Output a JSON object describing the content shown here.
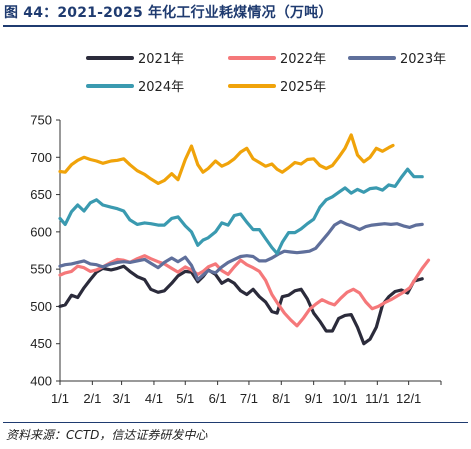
{
  "header": {
    "title": "图 44：2021-2025 年化工行业耗煤情况（万吨）"
  },
  "footer": {
    "source": "资料来源：CCTD，信达证券研发中心"
  },
  "chart_data": {
    "type": "line",
    "title": "",
    "xlabel": "",
    "ylabel": "",
    "ylim": [
      400,
      750
    ],
    "yticks": [
      400,
      450,
      500,
      550,
      600,
      650,
      700,
      750
    ],
    "xtick_labels": [
      "1/1",
      "2/1",
      "3/1",
      "4/1",
      "5/1",
      "6/1",
      "7/1",
      "8/1",
      "9/1",
      "10/1",
      "11/1",
      "12/1"
    ],
    "xtick_days": [
      1,
      32,
      60,
      91,
      121,
      152,
      182,
      213,
      244,
      274,
      305,
      335
    ],
    "xlim": [
      1,
      366
    ],
    "grid": false,
    "legend": "top",
    "series": [
      {
        "name": "2021年",
        "color": "#2b2b3b",
        "points": [
          [
            1,
            500
          ],
          [
            6,
            502
          ],
          [
            12,
            515
          ],
          [
            18,
            512
          ],
          [
            24,
            525
          ],
          [
            30,
            536
          ],
          [
            36,
            546
          ],
          [
            42,
            551
          ],
          [
            50,
            549
          ],
          [
            56,
            551
          ],
          [
            62,
            554
          ],
          [
            68,
            547
          ],
          [
            75,
            540
          ],
          [
            82,
            536
          ],
          [
            88,
            523
          ],
          [
            95,
            519
          ],
          [
            101,
            521
          ],
          [
            108,
            531
          ],
          [
            114,
            541
          ],
          [
            121,
            547
          ],
          [
            127,
            546
          ],
          [
            133,
            533
          ],
          [
            138,
            540
          ],
          [
            143,
            549
          ],
          [
            150,
            543
          ],
          [
            156,
            531
          ],
          [
            162,
            536
          ],
          [
            168,
            531
          ],
          [
            174,
            521
          ],
          [
            180,
            516
          ],
          [
            186,
            523
          ],
          [
            192,
            513
          ],
          [
            198,
            506
          ],
          [
            204,
            493
          ],
          [
            209,
            491
          ],
          [
            214,
            513
          ],
          [
            220,
            515
          ],
          [
            226,
            521
          ],
          [
            232,
            523
          ],
          [
            238,
            510
          ],
          [
            244,
            491
          ],
          [
            250,
            480
          ],
          [
            256,
            467
          ],
          [
            262,
            467
          ],
          [
            268,
            484
          ],
          [
            274,
            488
          ],
          [
            280,
            489
          ],
          [
            286,
            472
          ],
          [
            292,
            450
          ],
          [
            298,
            456
          ],
          [
            304,
            472
          ],
          [
            310,
            502
          ],
          [
            316,
            513
          ],
          [
            322,
            520
          ],
          [
            328,
            522
          ],
          [
            334,
            518
          ],
          [
            340,
            534
          ],
          [
            348,
            537
          ]
        ]
      },
      {
        "name": "2022年",
        "color": "#f5787a",
        "points": [
          [
            1,
            542
          ],
          [
            6,
            545
          ],
          [
            12,
            547
          ],
          [
            18,
            554
          ],
          [
            24,
            552
          ],
          [
            30,
            547
          ],
          [
            36,
            549
          ],
          [
            42,
            553
          ],
          [
            50,
            559
          ],
          [
            56,
            563
          ],
          [
            62,
            562
          ],
          [
            68,
            559
          ],
          [
            75,
            564
          ],
          [
            82,
            568
          ],
          [
            88,
            564
          ],
          [
            95,
            560
          ],
          [
            101,
            557
          ],
          [
            108,
            551
          ],
          [
            114,
            546
          ],
          [
            121,
            553
          ],
          [
            127,
            549
          ],
          [
            133,
            543
          ],
          [
            138,
            547
          ],
          [
            143,
            553
          ],
          [
            150,
            557
          ],
          [
            156,
            548
          ],
          [
            162,
            543
          ],
          [
            168,
            553
          ],
          [
            174,
            562
          ],
          [
            180,
            556
          ],
          [
            186,
            552
          ],
          [
            192,
            547
          ],
          [
            198,
            535
          ],
          [
            204,
            516
          ],
          [
            210,
            503
          ],
          [
            216,
            491
          ],
          [
            222,
            482
          ],
          [
            228,
            474
          ],
          [
            234,
            484
          ],
          [
            240,
            496
          ],
          [
            246,
            503
          ],
          [
            252,
            509
          ],
          [
            258,
            505
          ],
          [
            264,
            502
          ],
          [
            270,
            511
          ],
          [
            276,
            519
          ],
          [
            282,
            523
          ],
          [
            288,
            518
          ],
          [
            294,
            506
          ],
          [
            300,
            497
          ],
          [
            306,
            500
          ],
          [
            312,
            505
          ],
          [
            318,
            509
          ],
          [
            324,
            514
          ],
          [
            330,
            519
          ],
          [
            336,
            525
          ],
          [
            342,
            538
          ],
          [
            348,
            551
          ],
          [
            354,
            562
          ]
        ]
      },
      {
        "name": "2023年",
        "color": "#5f6f9b",
        "points": [
          [
            1,
            554
          ],
          [
            6,
            556
          ],
          [
            12,
            557
          ],
          [
            18,
            559
          ],
          [
            24,
            561
          ],
          [
            30,
            557
          ],
          [
            36,
            556
          ],
          [
            42,
            553
          ],
          [
            50,
            557
          ],
          [
            56,
            559
          ],
          [
            62,
            560
          ],
          [
            68,
            559
          ],
          [
            75,
            561
          ],
          [
            82,
            563
          ],
          [
            88,
            558
          ],
          [
            95,
            552
          ],
          [
            101,
            559
          ],
          [
            108,
            565
          ],
          [
            114,
            560
          ],
          [
            121,
            566
          ],
          [
            127,
            555
          ],
          [
            133,
            536
          ],
          [
            138,
            542
          ],
          [
            143,
            548
          ],
          [
            150,
            545
          ],
          [
            156,
            553
          ],
          [
            162,
            559
          ],
          [
            168,
            563
          ],
          [
            174,
            567
          ],
          [
            180,
            568
          ],
          [
            186,
            567
          ],
          [
            192,
            561
          ],
          [
            198,
            561
          ],
          [
            204,
            565
          ],
          [
            210,
            570
          ],
          [
            216,
            574
          ],
          [
            222,
            573
          ],
          [
            228,
            572
          ],
          [
            234,
            573
          ],
          [
            240,
            574
          ],
          [
            246,
            578
          ],
          [
            252,
            588
          ],
          [
            258,
            598
          ],
          [
            264,
            609
          ],
          [
            270,
            614
          ],
          [
            276,
            610
          ],
          [
            282,
            607
          ],
          [
            288,
            603
          ],
          [
            294,
            607
          ],
          [
            300,
            609
          ],
          [
            306,
            610
          ],
          [
            312,
            611
          ],
          [
            318,
            610
          ],
          [
            324,
            611
          ],
          [
            330,
            608
          ],
          [
            336,
            606
          ],
          [
            342,
            609
          ],
          [
            348,
            610
          ]
        ]
      },
      {
        "name": "2024年",
        "color": "#3a9ab0",
        "points": [
          [
            1,
            618
          ],
          [
            6,
            610
          ],
          [
            12,
            627
          ],
          [
            18,
            636
          ],
          [
            24,
            628
          ],
          [
            30,
            639
          ],
          [
            36,
            643
          ],
          [
            42,
            636
          ],
          [
            50,
            633
          ],
          [
            56,
            631
          ],
          [
            62,
            628
          ],
          [
            68,
            616
          ],
          [
            75,
            610
          ],
          [
            82,
            612
          ],
          [
            88,
            611
          ],
          [
            95,
            609
          ],
          [
            101,
            609
          ],
          [
            108,
            618
          ],
          [
            114,
            620
          ],
          [
            121,
            608
          ],
          [
            127,
            600
          ],
          [
            133,
            582
          ],
          [
            138,
            589
          ],
          [
            143,
            592
          ],
          [
            150,
            600
          ],
          [
            156,
            612
          ],
          [
            162,
            609
          ],
          [
            168,
            622
          ],
          [
            174,
            624
          ],
          [
            180,
            613
          ],
          [
            186,
            603
          ],
          [
            192,
            603
          ],
          [
            198,
            591
          ],
          [
            204,
            579
          ],
          [
            209,
            571
          ],
          [
            214,
            586
          ],
          [
            220,
            599
          ],
          [
            226,
            599
          ],
          [
            232,
            604
          ],
          [
            238,
            611
          ],
          [
            244,
            617
          ],
          [
            250,
            633
          ],
          [
            256,
            643
          ],
          [
            262,
            647
          ],
          [
            268,
            653
          ],
          [
            274,
            659
          ],
          [
            280,
            652
          ],
          [
            286,
            657
          ],
          [
            292,
            653
          ],
          [
            298,
            658
          ],
          [
            304,
            659
          ],
          [
            310,
            656
          ],
          [
            316,
            663
          ],
          [
            322,
            661
          ],
          [
            328,
            673
          ],
          [
            334,
            684
          ],
          [
            340,
            674
          ],
          [
            348,
            674
          ]
        ]
      },
      {
        "name": "2025年",
        "color": "#f0a30a",
        "points": [
          [
            1,
            681
          ],
          [
            6,
            680
          ],
          [
            12,
            690
          ],
          [
            18,
            696
          ],
          [
            24,
            700
          ],
          [
            30,
            697
          ],
          [
            36,
            695
          ],
          [
            42,
            692
          ],
          [
            50,
            695
          ],
          [
            56,
            696
          ],
          [
            62,
            698
          ],
          [
            68,
            690
          ],
          [
            75,
            682
          ],
          [
            82,
            677
          ],
          [
            88,
            671
          ],
          [
            95,
            665
          ],
          [
            101,
            669
          ],
          [
            108,
            678
          ],
          [
            114,
            670
          ],
          [
            121,
            697
          ],
          [
            127,
            715
          ],
          [
            133,
            690
          ],
          [
            138,
            680
          ],
          [
            143,
            685
          ],
          [
            150,
            695
          ],
          [
            156,
            688
          ],
          [
            162,
            692
          ],
          [
            168,
            698
          ],
          [
            174,
            707
          ],
          [
            180,
            712
          ],
          [
            186,
            698
          ],
          [
            192,
            693
          ],
          [
            198,
            688
          ],
          [
            204,
            691
          ],
          [
            209,
            684
          ],
          [
            214,
            680
          ],
          [
            220,
            686
          ],
          [
            226,
            693
          ],
          [
            232,
            691
          ],
          [
            238,
            697
          ],
          [
            244,
            698
          ],
          [
            250,
            689
          ],
          [
            256,
            685
          ],
          [
            262,
            689
          ],
          [
            268,
            700
          ],
          [
            274,
            712
          ],
          [
            280,
            730
          ],
          [
            286,
            703
          ],
          [
            292,
            694
          ],
          [
            298,
            700
          ],
          [
            304,
            712
          ],
          [
            310,
            708
          ],
          [
            316,
            713
          ],
          [
            320,
            716
          ]
        ]
      }
    ]
  }
}
